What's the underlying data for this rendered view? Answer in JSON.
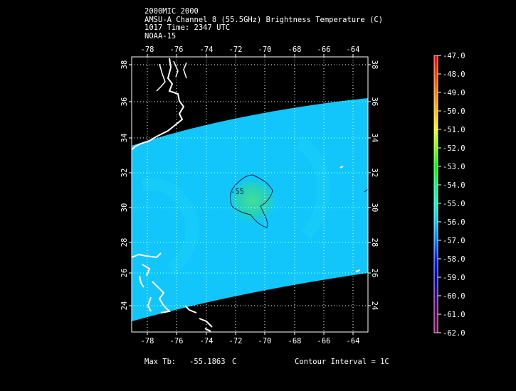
{
  "header": {
    "line1": "2000MIC 2000",
    "line2": "AMSU-A Channel 8 (55.5GHz) Brightness Temperature (C)",
    "line3": "1017 Time: 2347 UTC",
    "line4": "NOAA-15"
  },
  "map": {
    "lon_labels": [
      "-78",
      "-76",
      "-74",
      "-72",
      "-70",
      "-68",
      "-66",
      "-64"
    ],
    "lat_labels": [
      "38",
      "36",
      "34",
      "32",
      "30",
      "28",
      "26",
      "24"
    ],
    "contour_label": "-55",
    "colors": {
      "swath": "#10c8ff",
      "warm_center": "#3ad8a8",
      "land": "#ffffff",
      "contour": "#1a1a40"
    }
  },
  "colorbar": {
    "labels": [
      "-47.0",
      "-48.0",
      "-49.0",
      "-50.0",
      "-51.0",
      "-52.0",
      "-53.0",
      "-54.0",
      "-55.0",
      "-56.0",
      "-57.0",
      "-58.0",
      "-59.0",
      "-60.0",
      "-61.0",
      "-62.0"
    ],
    "colors": [
      "#ff0000",
      "#ff4000",
      "#ff8000",
      "#ffc000",
      "#ffff00",
      "#80ff00",
      "#00ff00",
      "#00ff80",
      "#00ffcc",
      "#00ccff",
      "#0080ff",
      "#0020ff",
      "#0000c0",
      "#400090",
      "#600060",
      "#800050"
    ]
  },
  "footer": {
    "max_label": "Max Tb:",
    "max_value": "-55.1863",
    "max_unit": "C",
    "contour_interval": "Contour Interval = 1C"
  }
}
